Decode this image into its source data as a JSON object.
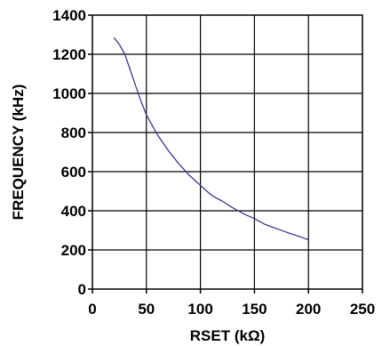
{
  "chart_data": {
    "type": "line",
    "xlabel": "RSET (kΩ)",
    "ylabel": "FREQUENCY (kHz)",
    "xlim": [
      0,
      250
    ],
    "ylim": [
      0,
      1400
    ],
    "xticks": [
      0,
      50,
      100,
      150,
      200,
      250
    ],
    "yticks": [
      0,
      200,
      400,
      600,
      800,
      1000,
      1200,
      1400
    ],
    "grid": true,
    "line_color": "#3a3a8c",
    "series": [
      {
        "x": [
          20,
          25,
          30,
          35,
          40,
          45,
          50,
          55,
          60,
          70,
          80,
          90,
          100,
          110,
          120,
          130,
          140,
          150,
          160,
          170,
          180,
          190,
          200
        ],
        "y": [
          1285,
          1250,
          1200,
          1120,
          1040,
          960,
          890,
          840,
          790,
          710,
          640,
          580,
          530,
          480,
          450,
          415,
          385,
          360,
          330,
          310,
          290,
          272,
          252
        ]
      }
    ]
  }
}
